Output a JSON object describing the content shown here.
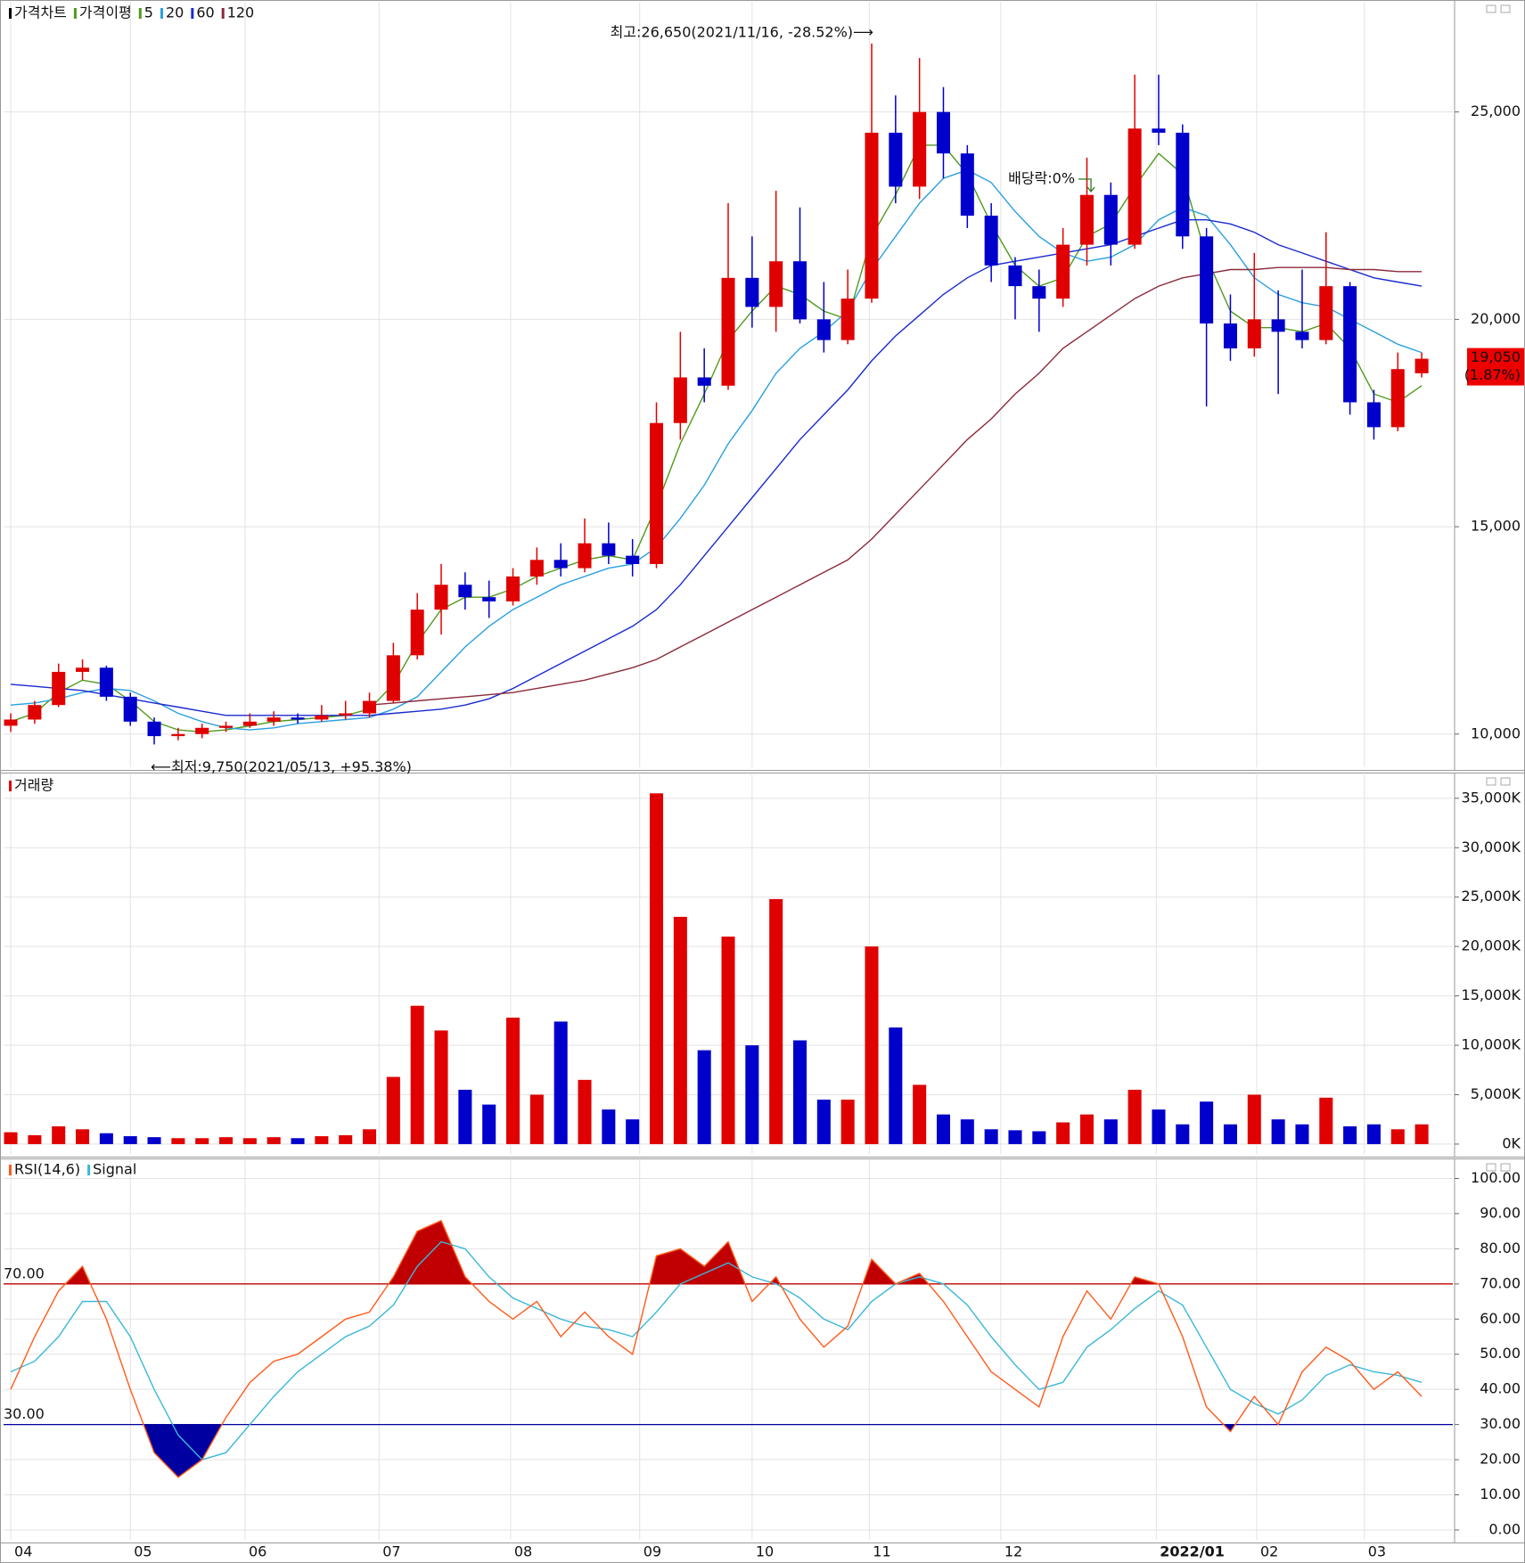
{
  "chart_data": [
    {
      "type": "candlestick",
      "title": "가격차트",
      "up_color": "#e00000",
      "down_color": "#0000cc",
      "open": [
        10200,
        10350,
        10700,
        11500,
        11600,
        10900,
        10300,
        9950,
        10000,
        10150,
        10200,
        10300,
        10400,
        10350,
        10450,
        10500,
        10800,
        11900,
        13000,
        13600,
        13300,
        13200,
        13800,
        14200,
        14000,
        14600,
        14300,
        14100,
        17500,
        18600,
        18400,
        21000,
        20300,
        21400,
        20000,
        19500,
        20500,
        24500,
        23200,
        25000,
        24000,
        22500,
        21300,
        20800,
        20500,
        21800,
        23000,
        21800,
        24600,
        24500,
        22000,
        19900,
        19300,
        20000,
        19700,
        19500,
        20800,
        18000,
        17400,
        18700
      ],
      "high": [
        10500,
        10800,
        11700,
        11800,
        11650,
        11000,
        10400,
        10150,
        10250,
        10300,
        10500,
        10550,
        10500,
        10700,
        10800,
        11000,
        12200,
        13400,
        14100,
        13900,
        13700,
        14000,
        14500,
        14600,
        15200,
        15100,
        14700,
        18000,
        19700,
        19300,
        22800,
        22000,
        23100,
        22700,
        20900,
        21200,
        26650,
        25400,
        26300,
        25600,
        24200,
        22800,
        21500,
        21200,
        22200,
        23900,
        23300,
        25900,
        25900,
        24700,
        22200,
        20600,
        21600,
        20700,
        21200,
        22100,
        20900,
        18300,
        19200,
        19200
      ],
      "low": [
        10050,
        10250,
        10650,
        11300,
        10800,
        10200,
        9750,
        9850,
        9900,
        10050,
        10150,
        10200,
        10250,
        10300,
        10350,
        10400,
        10750,
        11800,
        12400,
        13000,
        12800,
        13100,
        13600,
        13800,
        13900,
        14100,
        13800,
        14000,
        17100,
        18000,
        18300,
        19800,
        19700,
        19900,
        19200,
        19400,
        20400,
        22800,
        22900,
        23400,
        22200,
        20900,
        20000,
        19700,
        20300,
        21300,
        21300,
        21700,
        24200,
        21700,
        17900,
        19000,
        19100,
        18200,
        19300,
        19400,
        17700,
        17100,
        17300,
        18600
      ],
      "close": [
        10350,
        10700,
        11500,
        11600,
        10900,
        10300,
        9950,
        10000,
        10150,
        10200,
        10300,
        10400,
        10350,
        10450,
        10500,
        10800,
        11900,
        13000,
        13600,
        13300,
        13200,
        13800,
        14200,
        14000,
        14600,
        14300,
        14100,
        17500,
        18600,
        18400,
        21000,
        20300,
        21400,
        20000,
        19500,
        20500,
        24500,
        23200,
        25000,
        24000,
        22500,
        21300,
        20800,
        20500,
        21800,
        23000,
        21800,
        24600,
        24500,
        22000,
        19900,
        19300,
        20000,
        19700,
        19500,
        20800,
        18000,
        17400,
        18800,
        19050
      ],
      "ma_label": "가격이평",
      "series": [
        {
          "name": "5",
          "color": "#4f9a1c",
          "values": [
            10300,
            10500,
            11000,
            11300,
            11200,
            10800,
            10300,
            10100,
            10050,
            10100,
            10200,
            10300,
            10350,
            10400,
            10450,
            10600,
            11200,
            12200,
            13000,
            13300,
            13300,
            13500,
            13800,
            14000,
            14200,
            14300,
            14200,
            15500,
            17000,
            18200,
            19500,
            20200,
            20800,
            20600,
            20200,
            20000,
            22000,
            23000,
            24200,
            24200,
            23500,
            22300,
            21300,
            20800,
            21000,
            22000,
            22300,
            23200,
            24000,
            23500,
            21500,
            20200,
            19800,
            19800,
            19700,
            19900,
            19300,
            18200,
            18000,
            18400
          ]
        },
        {
          "name": "20",
          "color": "#2a9fe0",
          "values": [
            10700,
            10750,
            10850,
            11000,
            11100,
            11050,
            10800,
            10500,
            10300,
            10150,
            10100,
            10150,
            10250,
            10300,
            10350,
            10400,
            10600,
            10900,
            11500,
            12100,
            12600,
            13000,
            13300,
            13600,
            13800,
            14000,
            14100,
            14500,
            15200,
            16000,
            17000,
            17800,
            18700,
            19300,
            19700,
            20200,
            21200,
            22000,
            22800,
            23400,
            23600,
            23300,
            22600,
            22000,
            21600,
            21400,
            21500,
            21800,
            22400,
            22700,
            22500,
            21800,
            21000,
            20600,
            20400,
            20300,
            20000,
            19700,
            19400,
            19200
          ]
        },
        {
          "name": "60",
          "color": "#1a2ad0",
          "values": [
            11200,
            11150,
            11100,
            11050,
            10950,
            10850,
            10750,
            10650,
            10550,
            10450,
            10450,
            10450,
            10450,
            10450,
            10450,
            10450,
            10500,
            10550,
            10600,
            10700,
            10850,
            11100,
            11400,
            11700,
            12000,
            12300,
            12600,
            13000,
            13600,
            14300,
            15000,
            15700,
            16400,
            17100,
            17700,
            18300,
            19000,
            19600,
            20100,
            20600,
            21000,
            21300,
            21400,
            21500,
            21600,
            21700,
            21800,
            22000,
            22200,
            22400,
            22400,
            22300,
            22100,
            21800,
            21600,
            21400,
            21200,
            21000,
            20900,
            20800
          ]
        },
        {
          "name": "120",
          "color": "#8b2a3a",
          "values": [
            null,
            null,
            null,
            null,
            null,
            null,
            null,
            null,
            null,
            null,
            null,
            null,
            null,
            null,
            null,
            10700,
            10750,
            10800,
            10850,
            10900,
            10950,
            11000,
            11100,
            11200,
            11300,
            11450,
            11600,
            11800,
            12100,
            12400,
            12700,
            13000,
            13300,
            13600,
            13900,
            14200,
            14700,
            15300,
            15900,
            16500,
            17100,
            17600,
            18200,
            18700,
            19300,
            19700,
            20100,
            20500,
            20800,
            21000,
            21100,
            21200,
            21200,
            21250,
            21250,
            21250,
            21200,
            21200,
            21150,
            21150
          ]
        }
      ],
      "ylim": [
        9200,
        27700
      ],
      "yticks": [
        {
          "value": 10000,
          "label": "10,000"
        },
        {
          "value": 15000,
          "label": "15,000"
        },
        {
          "value": 20000,
          "label": "20,000"
        },
        {
          "value": 25000,
          "label": "25,000"
        }
      ],
      "high_note": "최고:26,650(2021/11/16, -28.52%)⟶",
      "low_note": "⟵최저:9,750(2021/05/13, +95.38%)",
      "dividend_note": "배당락:0%",
      "last_label": "19,050",
      "last_change": "(1.87%)"
    },
    {
      "type": "bar",
      "title": "거래량",
      "values": [
        1200,
        900,
        1800,
        1500,
        1100,
        800,
        700,
        600,
        600,
        700,
        600,
        700,
        600,
        800,
        900,
        1500,
        6800,
        14000,
        11500,
        5500,
        4000,
        12800,
        5000,
        12400,
        6500,
        3500,
        2500,
        35500,
        23000,
        9500,
        21000,
        10000,
        24800,
        10500,
        4500,
        4500,
        20000,
        11800,
        6000,
        3000,
        2500,
        1500,
        1400,
        1300,
        2200,
        3000,
        2500,
        5500,
        3500,
        2000,
        4300,
        2000,
        5000,
        2500,
        2000,
        4700,
        1800,
        2000,
        1500,
        2000
      ],
      "ylim": [
        -1000,
        37600
      ],
      "yticks": [
        {
          "value": 0,
          "label": "0K"
        },
        {
          "value": 5000,
          "label": "5,000K"
        },
        {
          "value": 10000,
          "label": "10,000K"
        },
        {
          "value": 15000,
          "label": "15,000K"
        },
        {
          "value": 20000,
          "label": "20,000K"
        },
        {
          "value": 25000,
          "label": "25,000K"
        },
        {
          "value": 30000,
          "label": "30,000K"
        },
        {
          "value": 35000,
          "label": "35,000K"
        }
      ]
    },
    {
      "type": "line",
      "series": [
        {
          "name": "RSI(14,6)",
          "color": "#ff5a1a",
          "values": [
            40,
            55,
            68,
            75,
            60,
            40,
            22,
            15,
            20,
            32,
            42,
            48,
            50,
            55,
            60,
            62,
            72,
            85,
            88,
            72,
            65,
            60,
            65,
            55,
            62,
            55,
            50,
            78,
            80,
            75,
            82,
            65,
            72,
            60,
            52,
            58,
            77,
            70,
            73,
            65,
            55,
            45,
            40,
            35,
            55,
            68,
            60,
            72,
            70,
            55,
            35,
            28,
            38,
            30,
            45,
            52,
            48,
            40,
            45,
            38
          ]
        },
        {
          "name": "Signal",
          "color": "#3ab8d8",
          "values": [
            45,
            48,
            55,
            65,
            65,
            55,
            40,
            27,
            20,
            22,
            30,
            38,
            45,
            50,
            55,
            58,
            64,
            75,
            82,
            80,
            72,
            66,
            63,
            60,
            58,
            57,
            55,
            62,
            70,
            73,
            76,
            72,
            70,
            66,
            60,
            57,
            65,
            70,
            72,
            70,
            64,
            55,
            47,
            40,
            42,
            52,
            57,
            63,
            68,
            64,
            52,
            40,
            36,
            33,
            37,
            44,
            47,
            45,
            44,
            42
          ]
        }
      ],
      "levels": [
        {
          "value": 70,
          "label": "70.00",
          "color": "#c00000"
        },
        {
          "value": 30,
          "label": "30.00",
          "color": "#0000a0"
        }
      ],
      "ylim": [
        -2.8,
        105.7
      ],
      "yticks": [
        {
          "value": 0,
          "label": "0.00"
        },
        {
          "value": 10,
          "label": "10.00"
        },
        {
          "value": 20,
          "label": "20.00"
        },
        {
          "value": 30,
          "label": "30.00"
        },
        {
          "value": 40,
          "label": "40.00"
        },
        {
          "value": 50,
          "label": "50.00"
        },
        {
          "value": 60,
          "label": "60.00"
        },
        {
          "value": 70,
          "label": "70.00"
        },
        {
          "value": 80,
          "label": "80.00"
        },
        {
          "value": 90,
          "label": "90.00"
        },
        {
          "value": 100,
          "label": "100.00"
        }
      ],
      "xlim": [
        -0.3,
        60.3
      ],
      "xticks": [
        {
          "value": 0,
          "label": "04"
        },
        {
          "value": 5,
          "label": "05"
        },
        {
          "value": 9.8,
          "label": "06"
        },
        {
          "value": 15.4,
          "label": "07"
        },
        {
          "value": 20.9,
          "label": "08"
        },
        {
          "value": 26.3,
          "label": "09"
        },
        {
          "value": 31,
          "label": "10"
        },
        {
          "value": 35.9,
          "label": "11"
        },
        {
          "value": 41.4,
          "label": "12"
        },
        {
          "value": 47.9,
          "label": "2022/01"
        },
        {
          "value": 52.1,
          "label": "02"
        },
        {
          "value": 56.6,
          "label": "03"
        }
      ]
    }
  ]
}
